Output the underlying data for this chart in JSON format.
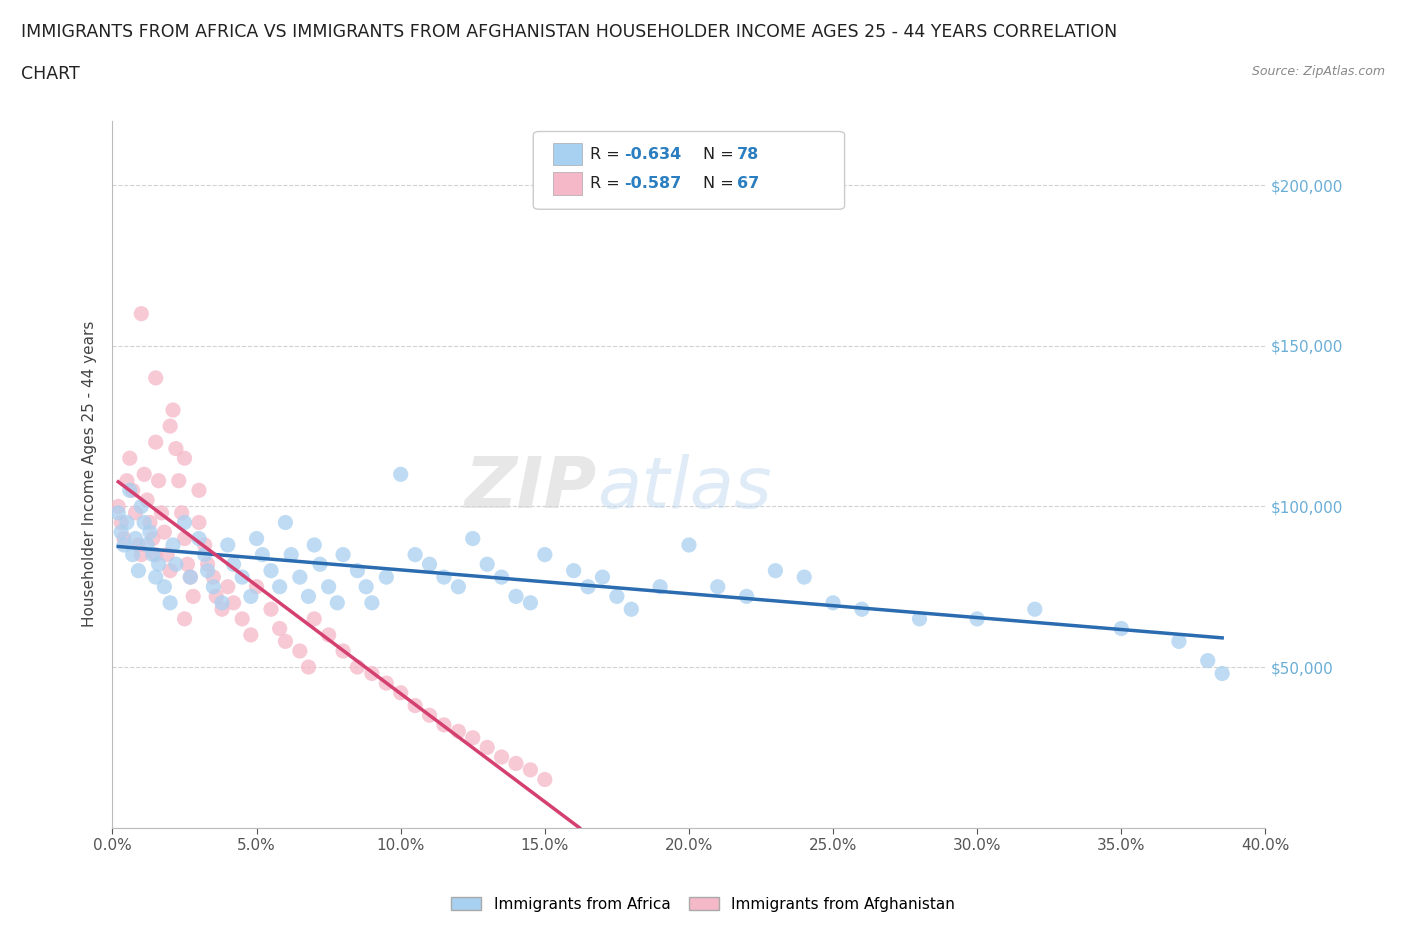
{
  "title_line1": "IMMIGRANTS FROM AFRICA VS IMMIGRANTS FROM AFGHANISTAN HOUSEHOLDER INCOME AGES 25 - 44 YEARS CORRELATION",
  "title_line2": "CHART",
  "source": "Source: ZipAtlas.com",
  "ylabel": "Householder Income Ages 25 - 44 years",
  "xlim": [
    0.0,
    0.4
  ],
  "ylim": [
    0,
    220000
  ],
  "africa_color": "#A8D0F0",
  "afghanistan_color": "#F5B8C8",
  "africa_line_color": "#2B6CB0",
  "afghanistan_line_color": "#D44070",
  "R_africa": -0.634,
  "N_africa": 78,
  "R_afghanistan": -0.587,
  "N_afghanistan": 67,
  "background_color": "#ffffff",
  "grid_color": "#cccccc",
  "right_tick_color": "#6aaed6",
  "legend_box_color": "#f0f8ff",
  "africa_x": [
    0.002,
    0.003,
    0.004,
    0.005,
    0.006,
    0.007,
    0.008,
    0.009,
    0.01,
    0.011,
    0.012,
    0.013,
    0.014,
    0.015,
    0.016,
    0.018,
    0.02,
    0.021,
    0.022,
    0.025,
    0.027,
    0.03,
    0.032,
    0.033,
    0.035,
    0.038,
    0.04,
    0.042,
    0.045,
    0.048,
    0.05,
    0.052,
    0.055,
    0.058,
    0.06,
    0.062,
    0.065,
    0.068,
    0.07,
    0.072,
    0.075,
    0.078,
    0.08,
    0.085,
    0.088,
    0.09,
    0.095,
    0.1,
    0.105,
    0.11,
    0.115,
    0.12,
    0.125,
    0.13,
    0.135,
    0.14,
    0.145,
    0.15,
    0.16,
    0.165,
    0.17,
    0.175,
    0.18,
    0.19,
    0.2,
    0.21,
    0.22,
    0.23,
    0.24,
    0.25,
    0.26,
    0.28,
    0.3,
    0.32,
    0.35,
    0.37,
    0.38,
    0.385
  ],
  "africa_y": [
    98000,
    92000,
    88000,
    95000,
    105000,
    85000,
    90000,
    80000,
    100000,
    95000,
    88000,
    92000,
    85000,
    78000,
    82000,
    75000,
    70000,
    88000,
    82000,
    95000,
    78000,
    90000,
    85000,
    80000,
    75000,
    70000,
    88000,
    82000,
    78000,
    72000,
    90000,
    85000,
    80000,
    75000,
    95000,
    85000,
    78000,
    72000,
    88000,
    82000,
    75000,
    70000,
    85000,
    80000,
    75000,
    70000,
    78000,
    110000,
    85000,
    82000,
    78000,
    75000,
    90000,
    82000,
    78000,
    72000,
    70000,
    85000,
    80000,
    75000,
    78000,
    72000,
    68000,
    75000,
    88000,
    75000,
    72000,
    80000,
    78000,
    70000,
    68000,
    65000,
    65000,
    68000,
    62000,
    58000,
    52000,
    48000
  ],
  "afg_x": [
    0.002,
    0.003,
    0.004,
    0.005,
    0.006,
    0.007,
    0.008,
    0.009,
    0.01,
    0.011,
    0.012,
    0.013,
    0.014,
    0.015,
    0.016,
    0.017,
    0.018,
    0.019,
    0.02,
    0.021,
    0.022,
    0.023,
    0.024,
    0.025,
    0.026,
    0.027,
    0.028,
    0.03,
    0.032,
    0.033,
    0.035,
    0.036,
    0.038,
    0.04,
    0.042,
    0.045,
    0.048,
    0.05,
    0.055,
    0.058,
    0.06,
    0.065,
    0.068,
    0.07,
    0.075,
    0.08,
    0.085,
    0.09,
    0.095,
    0.1,
    0.105,
    0.11,
    0.115,
    0.12,
    0.125,
    0.13,
    0.135,
    0.14,
    0.145,
    0.15,
    0.01,
    0.015,
    0.02,
    0.025,
    0.03,
    0.025,
    0.015
  ],
  "afg_y": [
    100000,
    95000,
    90000,
    108000,
    115000,
    105000,
    98000,
    88000,
    85000,
    110000,
    102000,
    95000,
    90000,
    120000,
    108000,
    98000,
    92000,
    85000,
    80000,
    130000,
    118000,
    108000,
    98000,
    90000,
    82000,
    78000,
    72000,
    95000,
    88000,
    82000,
    78000,
    72000,
    68000,
    75000,
    70000,
    65000,
    60000,
    75000,
    68000,
    62000,
    58000,
    55000,
    50000,
    65000,
    60000,
    55000,
    50000,
    48000,
    45000,
    42000,
    38000,
    35000,
    32000,
    30000,
    28000,
    25000,
    22000,
    20000,
    18000,
    15000,
    160000,
    140000,
    125000,
    115000,
    105000,
    65000,
    85000
  ]
}
